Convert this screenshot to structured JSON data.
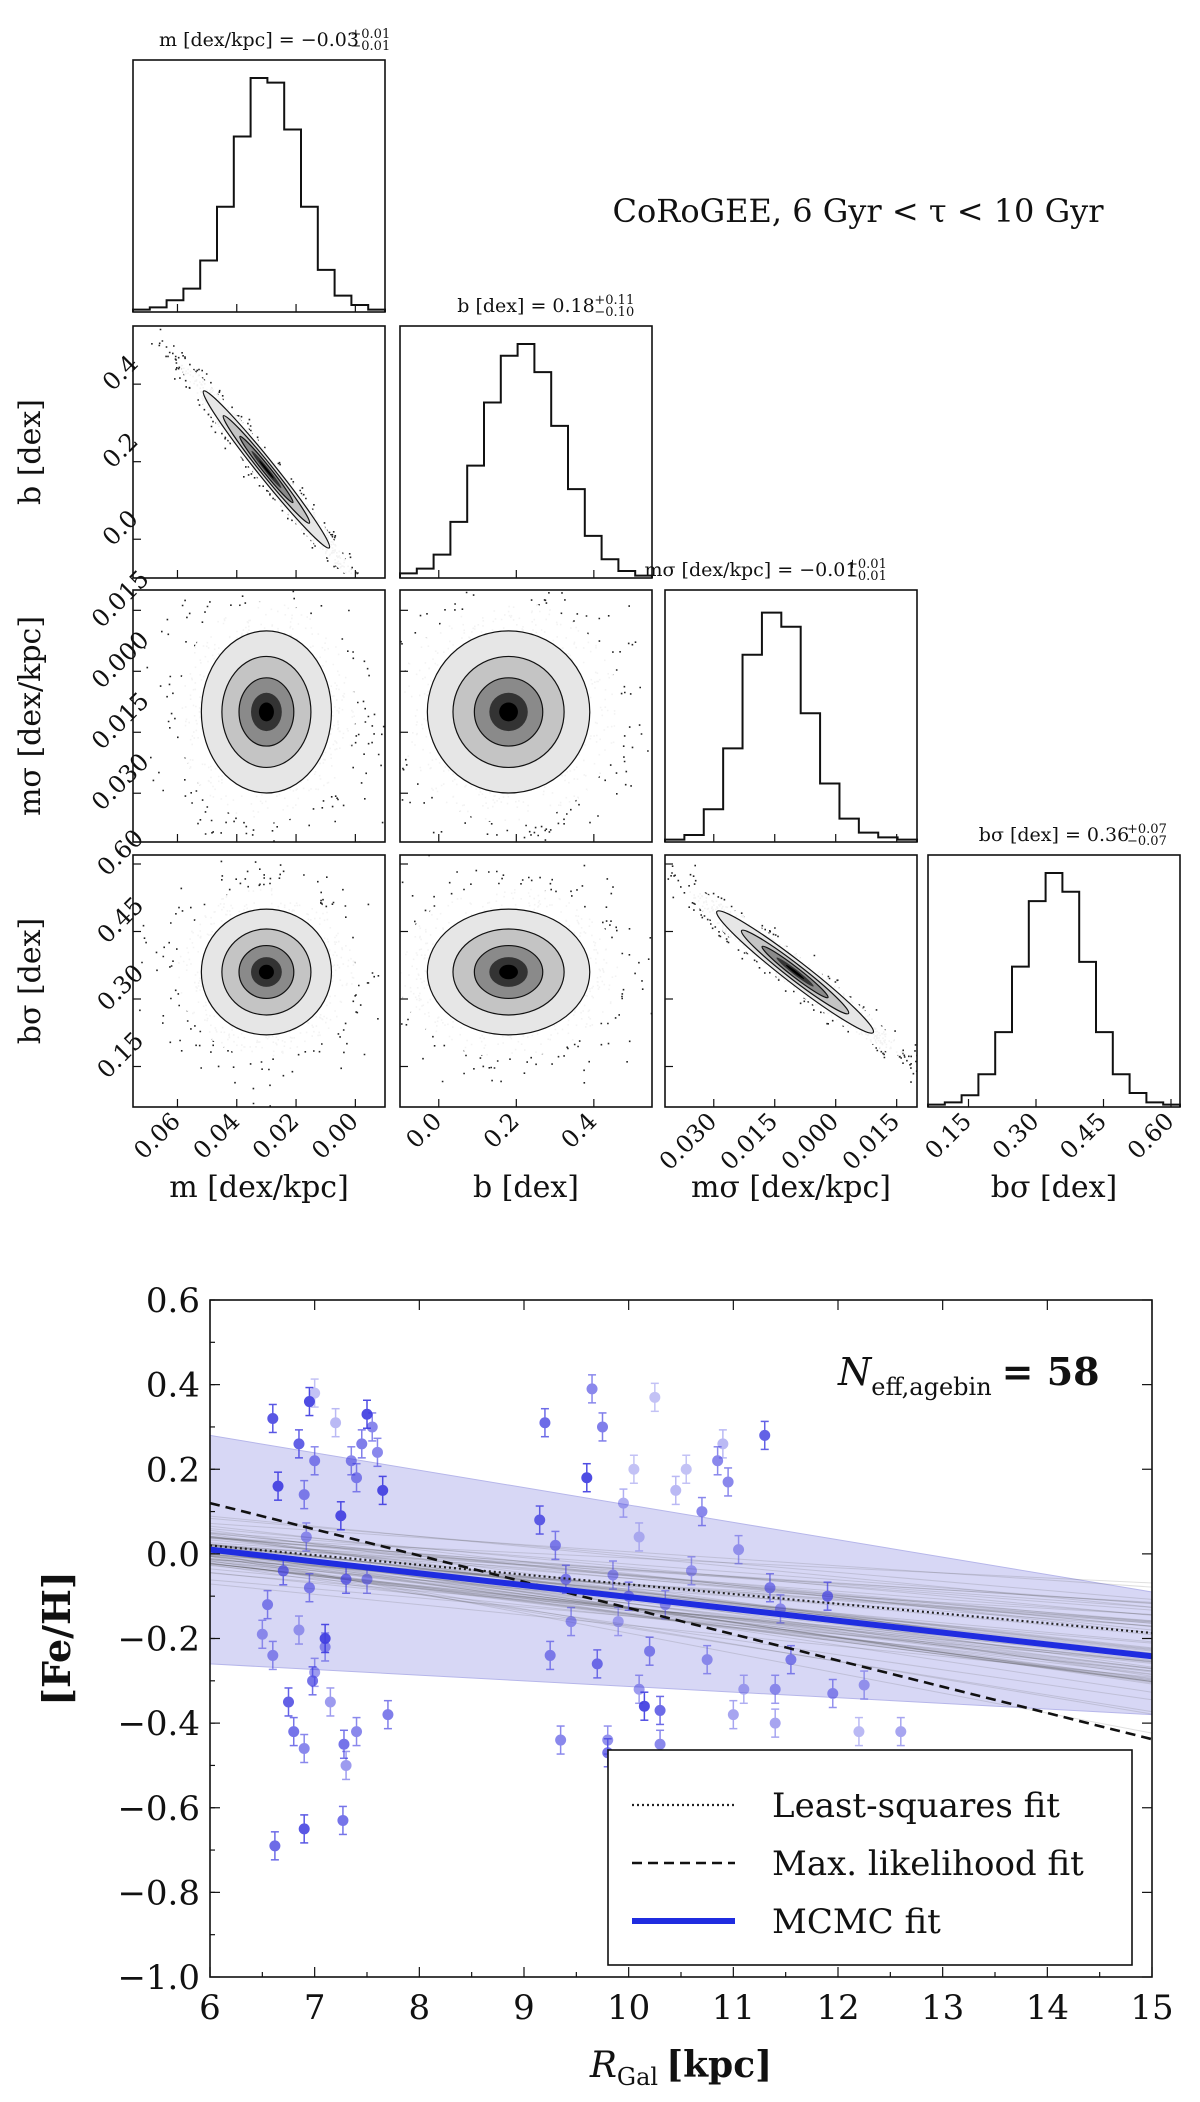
{
  "chart_data": [
    {
      "type": "corner",
      "annotation": "CoRoGEE, 6 Gyr < τ < 10 Gyr",
      "parameters": [
        {
          "key": "m",
          "label_symbol": "m",
          "label_unit": "[dex/kpc]",
          "axis_label": "m [dex/kpc]",
          "title_main": "m [dex/kpc] = −0.03",
          "title_sup": "+0.01",
          "title_sub": "−0.01",
          "median": -0.03,
          "err_plus": 0.01,
          "err_minus": 0.01,
          "range": [
            -0.075,
            0.01
          ],
          "ticks": [
            -0.06,
            -0.04,
            -0.02,
            0.0
          ],
          "tick_labels": [
            "0.06",
            "0.04",
            "0.02",
            "0.00"
          ],
          "hist_counts": [
            1,
            2,
            5,
            10,
            22,
            45,
            75,
            100,
            98,
            78,
            45,
            18,
            7,
            3,
            1
          ]
        },
        {
          "key": "b",
          "label_symbol": "b",
          "label_unit": "[dex]",
          "axis_label": "b [dex]",
          "title_main": "b [dex] = 0.18",
          "title_sup": "+0.11",
          "title_sub": "−0.10",
          "median": 0.18,
          "err_plus": 0.11,
          "err_minus": 0.1,
          "range": [
            -0.1,
            0.55
          ],
          "ticks": [
            0.0,
            0.2,
            0.4
          ],
          "tick_labels": [
            "0.0",
            "0.2",
            "0.4"
          ],
          "hist_counts": [
            2,
            4,
            10,
            24,
            48,
            75,
            95,
            100,
            88,
            65,
            38,
            18,
            8,
            3,
            1
          ]
        },
        {
          "key": "m_sigma",
          "label_symbol": "mσ",
          "label_unit": "[dex/kpc]",
          "axis_label": "mσ [dex/kpc]",
          "title_main": "mσ [dex/kpc] = −0.01",
          "title_sup": "+0.01",
          "title_sub": "−0.01",
          "median": -0.01,
          "err_plus": 0.01,
          "err_minus": 0.01,
          "range": [
            -0.042,
            0.02
          ],
          "ticks": [
            -0.03,
            -0.015,
            0.0,
            0.015
          ],
          "tick_labels": [
            "0.030",
            "0.015",
            "0.000",
            "0.015"
          ],
          "hist_counts": [
            1,
            3,
            14,
            40,
            80,
            98,
            92,
            55,
            25,
            10,
            4,
            2,
            1
          ]
        },
        {
          "key": "b_sigma",
          "label_symbol": "bσ",
          "label_unit": "[dex]",
          "axis_label": "bσ [dex]",
          "title_main": "bσ [dex] = 0.36",
          "title_sup": "+0.07",
          "title_sub": "−0.07",
          "median": 0.36,
          "err_plus": 0.07,
          "err_minus": 0.07,
          "range": [
            0.06,
            0.62
          ],
          "ticks": [
            0.15,
            0.3,
            0.45,
            0.6
          ],
          "tick_labels": [
            "0.15",
            "0.30",
            "0.45",
            "0.60"
          ],
          "hist_counts": [
            1,
            2,
            5,
            14,
            32,
            60,
            88,
            100,
            92,
            62,
            32,
            14,
            6,
            2,
            1
          ]
        }
      ],
      "correlations": {
        "m_b": -0.98,
        "msigma_bsigma": -0.97
      }
    },
    {
      "type": "scatter",
      "title": "",
      "xlabel": "R_Gal [kpc]",
      "xlabel_main": "R",
      "xlabel_sub": "Gal",
      "xlabel_unit": "[kpc]",
      "ylabel": "[Fe/H]",
      "xlim": [
        6,
        15
      ],
      "ylim": [
        -1.0,
        0.6
      ],
      "xticks": [
        6,
        7,
        8,
        9,
        10,
        11,
        12,
        13,
        14,
        15
      ],
      "xtick_labels": [
        "6",
        "7",
        "8",
        "9",
        "10",
        "11",
        "12",
        "13",
        "14",
        "15"
      ],
      "yticks": [
        0.6,
        0.4,
        0.2,
        0.0,
        -0.2,
        -0.4,
        -0.6,
        -0.8,
        -1.0
      ],
      "ytick_labels": [
        "0.6",
        "0.4",
        "0.2",
        "0.0",
        "−0.2",
        "−0.4",
        "−0.6",
        "−0.8",
        "−1.0"
      ],
      "annotation": {
        "main": "N",
        "sub": "eff,agebin",
        "value": "= 58"
      },
      "legend": {
        "placement": "lower-right",
        "entries": [
          {
            "label": "Least-squares fit",
            "style": "dotted",
            "color": "#222222"
          },
          {
            "label": "Max. likelihood fit",
            "style": "dashed",
            "color": "#111111"
          },
          {
            "label": "MCMC fit",
            "style": "solid",
            "color": "#1f2ce0"
          }
        ]
      },
      "fits": {
        "least_squares": {
          "intercept_at_6": 0.02,
          "slope": -0.023
        },
        "max_likelihood": {
          "intercept_at_6": 0.12,
          "slope": -0.062
        },
        "mcmc": {
          "intercept_at_6": 0.01,
          "slope": -0.028
        },
        "mcmc_band": [
          {
            "x": 6,
            "upper": 0.28,
            "lower": -0.26
          },
          {
            "x": 15,
            "upper": -0.09,
            "lower": -0.38
          }
        ]
      },
      "colors": {
        "point": "#3d3ae0",
        "band": "#c9c9f2",
        "mcmc": "#1f2ce0"
      },
      "points": [
        {
          "x": 6.6,
          "y": 0.32,
          "a": 0.85
        },
        {
          "x": 6.65,
          "y": 0.16,
          "a": 0.9
        },
        {
          "x": 6.7,
          "y": -0.04,
          "a": 0.7
        },
        {
          "x": 6.55,
          "y": -0.12,
          "a": 0.6
        },
        {
          "x": 6.5,
          "y": -0.19,
          "a": 0.5
        },
        {
          "x": 6.6,
          "y": -0.24,
          "a": 0.55
        },
        {
          "x": 6.75,
          "y": -0.35,
          "a": 0.8
        },
        {
          "x": 6.8,
          "y": -0.42,
          "a": 0.7
        },
        {
          "x": 6.62,
          "y": -0.69,
          "a": 0.75
        },
        {
          "x": 6.85,
          "y": 0.26,
          "a": 0.8
        },
        {
          "x": 6.9,
          "y": 0.14,
          "a": 0.6
        },
        {
          "x": 6.92,
          "y": 0.04,
          "a": 0.5
        },
        {
          "x": 6.95,
          "y": 0.36,
          "a": 0.9
        },
        {
          "x": 7.0,
          "y": 0.22,
          "a": 0.6
        },
        {
          "x": 6.95,
          "y": -0.08,
          "a": 0.6
        },
        {
          "x": 6.85,
          "y": -0.18,
          "a": 0.45
        },
        {
          "x": 7.0,
          "y": -0.28,
          "a": 0.5
        },
        {
          "x": 6.98,
          "y": -0.3,
          "a": 0.7
        },
        {
          "x": 6.9,
          "y": -0.46,
          "a": 0.6
        },
        {
          "x": 6.9,
          "y": -0.65,
          "a": 0.85
        },
        {
          "x": 7.1,
          "y": -0.2,
          "a": 0.9
        },
        {
          "x": 7.1,
          "y": -0.22,
          "a": 0.55
        },
        {
          "x": 7.15,
          "y": -0.35,
          "a": 0.5
        },
        {
          "x": 7.25,
          "y": 0.09,
          "a": 0.9
        },
        {
          "x": 7.3,
          "y": -0.06,
          "a": 0.7
        },
        {
          "x": 7.28,
          "y": -0.45,
          "a": 0.7
        },
        {
          "x": 7.27,
          "y": -0.63,
          "a": 0.7
        },
        {
          "x": 7.3,
          "y": -0.5,
          "a": 0.5
        },
        {
          "x": 7.35,
          "y": 0.22,
          "a": 0.6
        },
        {
          "x": 7.4,
          "y": 0.18,
          "a": 0.6
        },
        {
          "x": 7.4,
          "y": -0.42,
          "a": 0.6
        },
        {
          "x": 7.45,
          "y": 0.26,
          "a": 0.65
        },
        {
          "x": 7.5,
          "y": 0.33,
          "a": 0.9
        },
        {
          "x": 7.5,
          "y": -0.06,
          "a": 0.55
        },
        {
          "x": 7.55,
          "y": 0.3,
          "a": 0.6
        },
        {
          "x": 7.6,
          "y": 0.24,
          "a": 0.6
        },
        {
          "x": 7.65,
          "y": 0.15,
          "a": 0.9
        },
        {
          "x": 7.7,
          "y": -0.38,
          "a": 0.65
        },
        {
          "x": 7.2,
          "y": 0.31,
          "a": 0.35
        },
        {
          "x": 7.0,
          "y": 0.38,
          "a": 0.3
        },
        {
          "x": 9.2,
          "y": 0.31,
          "a": 0.75
        },
        {
          "x": 9.15,
          "y": 0.08,
          "a": 0.8
        },
        {
          "x": 9.3,
          "y": 0.02,
          "a": 0.6
        },
        {
          "x": 9.25,
          "y": -0.24,
          "a": 0.6
        },
        {
          "x": 9.35,
          "y": -0.44,
          "a": 0.6
        },
        {
          "x": 9.4,
          "y": -0.06,
          "a": 0.6
        },
        {
          "x": 9.45,
          "y": -0.16,
          "a": 0.5
        },
        {
          "x": 9.6,
          "y": 0.18,
          "a": 0.9
        },
        {
          "x": 9.65,
          "y": 0.39,
          "a": 0.6
        },
        {
          "x": 9.7,
          "y": -0.26,
          "a": 0.7
        },
        {
          "x": 9.75,
          "y": 0.3,
          "a": 0.65
        },
        {
          "x": 9.8,
          "y": -0.47,
          "a": 0.7
        },
        {
          "x": 9.8,
          "y": -0.44,
          "a": 0.55
        },
        {
          "x": 9.85,
          "y": -0.05,
          "a": 0.5
        },
        {
          "x": 9.95,
          "y": 0.12,
          "a": 0.4
        },
        {
          "x": 10.0,
          "y": -0.1,
          "a": 0.6
        },
        {
          "x": 10.05,
          "y": 0.2,
          "a": 0.3
        },
        {
          "x": 10.1,
          "y": 0.04,
          "a": 0.3
        },
        {
          "x": 10.15,
          "y": -0.36,
          "a": 0.9
        },
        {
          "x": 10.2,
          "y": -0.23,
          "a": 0.6
        },
        {
          "x": 10.25,
          "y": 0.37,
          "a": 0.3
        },
        {
          "x": 10.3,
          "y": -0.37,
          "a": 0.75
        },
        {
          "x": 10.3,
          "y": -0.45,
          "a": 0.6
        },
        {
          "x": 10.35,
          "y": -0.12,
          "a": 0.5
        },
        {
          "x": 10.45,
          "y": 0.15,
          "a": 0.35
        },
        {
          "x": 10.55,
          "y": 0.2,
          "a": 0.3
        },
        {
          "x": 10.6,
          "y": -0.04,
          "a": 0.45
        },
        {
          "x": 10.7,
          "y": 0.1,
          "a": 0.6
        },
        {
          "x": 10.75,
          "y": -0.25,
          "a": 0.5
        },
        {
          "x": 10.85,
          "y": 0.22,
          "a": 0.6
        },
        {
          "x": 10.9,
          "y": 0.26,
          "a": 0.35
        },
        {
          "x": 10.95,
          "y": 0.17,
          "a": 0.6
        },
        {
          "x": 11.05,
          "y": 0.01,
          "a": 0.45
        },
        {
          "x": 11.0,
          "y": -0.38,
          "a": 0.45
        },
        {
          "x": 11.1,
          "y": -0.32,
          "a": 0.4
        },
        {
          "x": 11.3,
          "y": 0.28,
          "a": 0.8
        },
        {
          "x": 11.35,
          "y": -0.08,
          "a": 0.6
        },
        {
          "x": 11.4,
          "y": -0.32,
          "a": 0.5
        },
        {
          "x": 11.4,
          "y": -0.4,
          "a": 0.45
        },
        {
          "x": 11.45,
          "y": -0.13,
          "a": 0.5
        },
        {
          "x": 11.55,
          "y": -0.25,
          "a": 0.6
        },
        {
          "x": 11.9,
          "y": -0.1,
          "a": 0.7
        },
        {
          "x": 11.95,
          "y": -0.33,
          "a": 0.55
        },
        {
          "x": 12.2,
          "y": -0.42,
          "a": 0.35
        },
        {
          "x": 12.25,
          "y": -0.31,
          "a": 0.45
        },
        {
          "x": 12.6,
          "y": -0.42,
          "a": 0.45
        },
        {
          "x": 10.1,
          "y": -0.32,
          "a": 0.5
        },
        {
          "x": 9.9,
          "y": -0.16,
          "a": 0.4
        }
      ]
    }
  ]
}
